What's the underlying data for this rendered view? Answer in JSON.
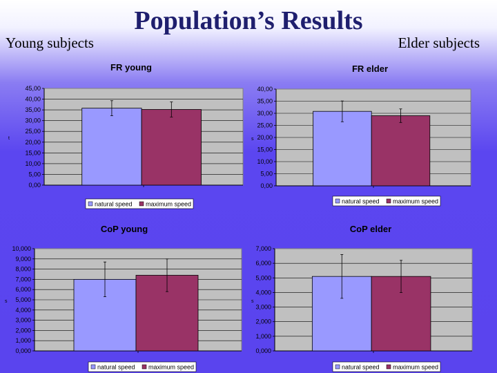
{
  "slide": {
    "title": "Population’s Results",
    "left_label": "Young subjects",
    "right_label": "Elder subjects"
  },
  "colors": {
    "natural_speed": "#9999ff",
    "maximum_speed": "#993366",
    "plot_area": "#c0c0c0",
    "chart_area": "#5b46f0"
  },
  "chart_data": [
    {
      "type": "bar",
      "title": "FR young",
      "xlabel": "",
      "ylabel": "",
      "y_axis_mark": "t",
      "ylim": [
        0,
        45
      ],
      "yticks": [
        "0,00",
        "5,00",
        "10,00",
        "15,00",
        "20,00",
        "25,00",
        "30,00",
        "35,00",
        "40,00",
        "45,00"
      ],
      "series": [
        {
          "name": "natural speed",
          "values": [
            35.8
          ],
          "error": [
            3.5
          ]
        },
        {
          "name": "maximum speed",
          "values": [
            35.2
          ],
          "error": [
            3.5
          ]
        }
      ],
      "grid": true,
      "legend": "bottom"
    },
    {
      "type": "bar",
      "title": "FR elder",
      "xlabel": "",
      "ylabel": "",
      "y_axis_mark": "s",
      "ylim": [
        0,
        40
      ],
      "yticks": [
        "0,00",
        "5,00",
        "10,00",
        "15,00",
        "20,00",
        "25,00",
        "30,00",
        "35,00",
        "40,00"
      ],
      "series": [
        {
          "name": "natural speed",
          "values": [
            30.8
          ],
          "error": [
            4.3
          ]
        },
        {
          "name": "maximum speed",
          "values": [
            29.0
          ],
          "error": [
            2.8
          ]
        }
      ],
      "grid": true,
      "legend": "bottom"
    },
    {
      "type": "bar",
      "title": "CoP young",
      "xlabel": "",
      "ylabel": "",
      "y_axis_mark": "s",
      "ylim": [
        0,
        10
      ],
      "yticks": [
        "0,000",
        "1,000",
        "2,000",
        "3,000",
        "4,000",
        "5,000",
        "6,000",
        "7,000",
        "8,000",
        "9,000",
        "10,000"
      ],
      "series": [
        {
          "name": "natural speed",
          "values": [
            7.0
          ],
          "error": [
            1.7
          ]
        },
        {
          "name": "maximum speed",
          "values": [
            7.4
          ],
          "error": [
            1.6
          ]
        }
      ],
      "grid": true,
      "legend": "bottom"
    },
    {
      "type": "bar",
      "title": "CoP elder",
      "xlabel": "",
      "ylabel": "",
      "y_axis_mark": "s",
      "ylim": [
        0,
        7
      ],
      "yticks": [
        "0,000",
        "1,000",
        "2,000",
        "3,000",
        "4,000",
        "5,000",
        "6,000",
        "7,000"
      ],
      "series": [
        {
          "name": "natural speed",
          "values": [
            5.1
          ],
          "error": [
            1.5
          ]
        },
        {
          "name": "maximum speed",
          "values": [
            5.1
          ],
          "error": [
            1.1
          ]
        }
      ],
      "grid": true,
      "legend": "bottom"
    }
  ]
}
